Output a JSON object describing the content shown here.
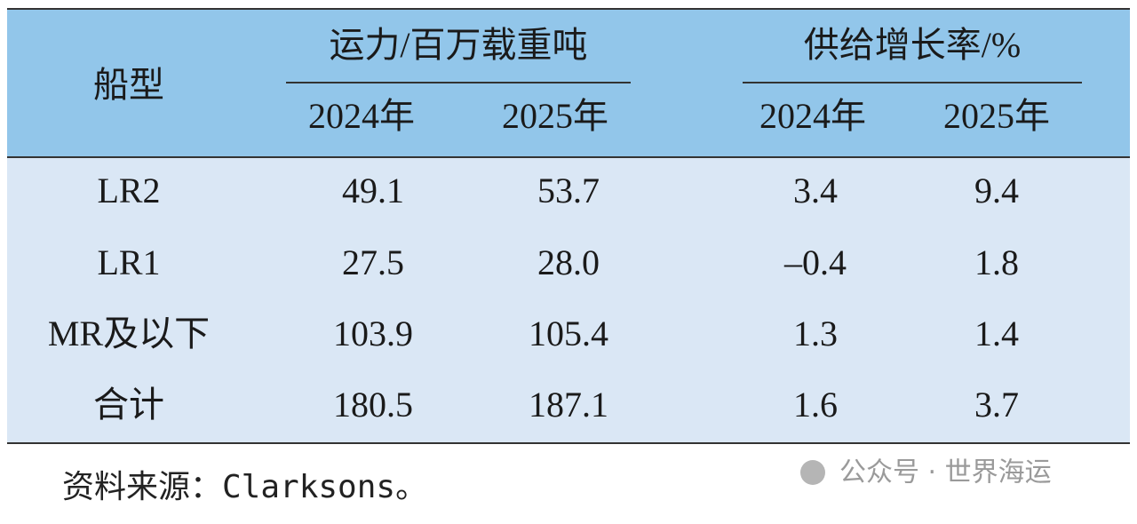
{
  "table": {
    "row_header": "船型",
    "groups": [
      {
        "title": "运力/百万载重吨",
        "columns": [
          "2024年",
          "2025年"
        ]
      },
      {
        "title": "供给增长率/%",
        "columns": [
          "2024年",
          "2025年"
        ]
      }
    ],
    "rows": [
      [
        "LR2",
        "49.1",
        "53.7",
        "3.4",
        "9.4"
      ],
      [
        "LR1",
        "27.5",
        "28.0",
        "–0.4",
        "1.8"
      ],
      [
        "MR及以下",
        "103.9",
        "105.4",
        "1.3",
        "1.4"
      ],
      [
        "合计",
        "180.5",
        "187.1",
        "1.6",
        "3.7"
      ]
    ]
  },
  "source": "资料来源：Clarksons。",
  "watermark": "公众号 · 世界海运"
}
